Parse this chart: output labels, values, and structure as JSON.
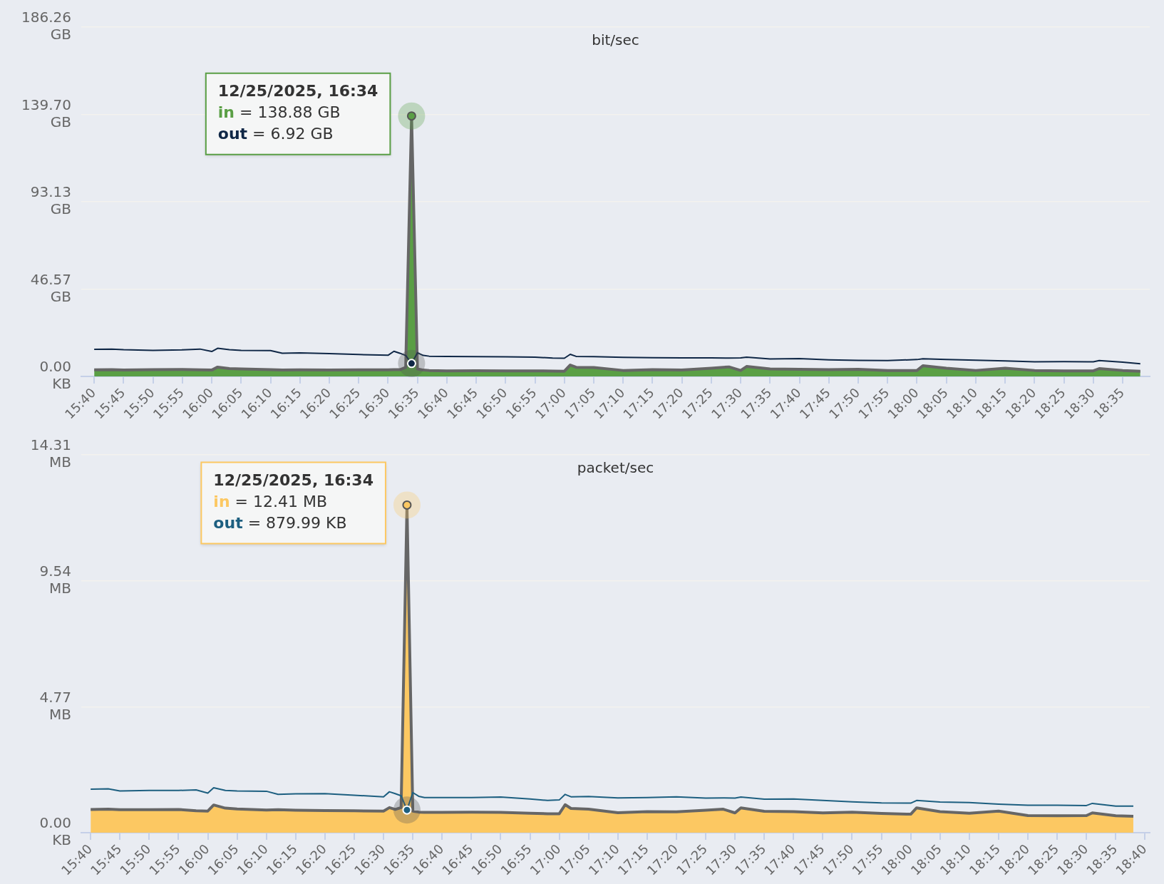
{
  "chart_data": [
    {
      "type": "area",
      "title": "bit/sec",
      "grid": "y",
      "marker": "none",
      "x": [
        15.6667,
        15.7167,
        15.75,
        15.8333,
        15.9167,
        15.9667,
        16,
        16.0167,
        16.05,
        16.0833,
        16.1667,
        16.2,
        16.25,
        16.3333,
        16.4167,
        16.5,
        16.5167,
        16.5333,
        16.55,
        16.5667,
        16.5833,
        16.6,
        16.6167,
        16.6667,
        16.75,
        16.8333,
        16.9167,
        16.9667,
        17,
        17.0167,
        17.0333,
        17.0833,
        17.1667,
        17.25,
        17.3333,
        17.4167,
        17.4667,
        17.5,
        17.5167,
        17.5833,
        17.6667,
        17.75,
        17.8333,
        17.9167,
        18,
        18.0167,
        18.0833,
        18.1667,
        18.25,
        18.3333,
        18.4167,
        18.5,
        18.5167,
        18.5833,
        18.6333
      ],
      "series": [
        {
          "name": "in",
          "color": "#5a9f45",
          "values": [
            3.5,
            3.6,
            3.4,
            3.6,
            3.7,
            3.5,
            3.4,
            5.0,
            4.2,
            4.0,
            3.6,
            3.4,
            3.5,
            3.4,
            3.5,
            3.5,
            3.6,
            3.6,
            4.8,
            138.88,
            4.0,
            3.4,
            3.2,
            3.0,
            3.1,
            3.0,
            3.0,
            2.9,
            2.8,
            6.1,
            4.9,
            4.8,
            3.2,
            3.6,
            3.4,
            4.4,
            5.1,
            3.2,
            5.3,
            4.0,
            3.8,
            3.6,
            3.8,
            3.2,
            3.2,
            5.7,
            4.4,
            3.2,
            4.4,
            3.2,
            3.0,
            3.0,
            4.2,
            3.2,
            2.8
          ]
        },
        {
          "name": "out",
          "type": "line",
          "color": "#0f2746",
          "values": [
            14.5,
            14.6,
            14.3,
            13.9,
            14.2,
            14.6,
            13.3,
            15.0,
            14.3,
            13.9,
            13.8,
            12.4,
            12.6,
            12.2,
            11.7,
            11.3,
            13.4,
            12.4,
            11.2,
            6.92,
            12.6,
            11.2,
            10.8,
            10.7,
            10.6,
            10.5,
            10.3,
            9.8,
            9.7,
            11.8,
            10.7,
            10.6,
            10.2,
            10.0,
            9.9,
            9.9,
            9.8,
            9.9,
            10.3,
            9.3,
            9.5,
            8.9,
            8.6,
            8.5,
            9.0,
            9.4,
            9.0,
            8.7,
            8.3,
            7.8,
            7.9,
            7.8,
            8.5,
            7.6,
            6.8
          ]
        }
      ],
      "annotations": [
        {
          "text": "12/25/2025, 16:34",
          "x": 16.5667,
          "y": 138.88
        },
        "= 138.88 GB",
        "= 6.92 GB"
      ],
      "xlim": [
        15.63,
        18.66
      ],
      "xticks": [
        {
          "value": 15.6667,
          "label": "15:40"
        },
        {
          "value": 15.75,
          "label": "15:45"
        },
        {
          "value": 15.8333,
          "label": "15:50"
        },
        {
          "value": 15.9167,
          "label": "15:55"
        },
        {
          "value": 16,
          "label": "16:00"
        },
        {
          "value": 16.0833,
          "label": "16:05"
        },
        {
          "value": 16.1667,
          "label": "16:10"
        },
        {
          "value": 16.25,
          "label": "16:15"
        },
        {
          "value": 16.3333,
          "label": "16:20"
        },
        {
          "value": 16.4167,
          "label": "16:25"
        },
        {
          "value": 16.5,
          "label": "16:30"
        },
        {
          "value": 16.5833,
          "label": "16:35"
        },
        {
          "value": 16.6667,
          "label": "16:40"
        },
        {
          "value": 16.75,
          "label": "16:45"
        },
        {
          "value": 16.8333,
          "label": "16:50"
        },
        {
          "value": 16.9167,
          "label": "16:55"
        },
        {
          "value": 17,
          "label": "17:00"
        },
        {
          "value": 17.0833,
          "label": "17:05"
        },
        {
          "value": 17.1667,
          "label": "17:10"
        },
        {
          "value": 17.25,
          "label": "17:15"
        },
        {
          "value": 17.3333,
          "label": "17:20"
        },
        {
          "value": 17.4167,
          "label": "17:25"
        },
        {
          "value": 17.5,
          "label": "17:30"
        },
        {
          "value": 17.5833,
          "label": "17:35"
        },
        {
          "value": 17.6667,
          "label": "17:40"
        },
        {
          "value": 17.75,
          "label": "17:45"
        },
        {
          "value": 17.8333,
          "label": "17:50"
        },
        {
          "value": 17.9167,
          "label": "17:55"
        },
        {
          "value": 18,
          "label": "18:00"
        },
        {
          "value": 18.0833,
          "label": "18:05"
        },
        {
          "value": 18.1667,
          "label": "18:10"
        },
        {
          "value": 18.25,
          "label": "18:15"
        },
        {
          "value": 18.3333,
          "label": "18:20"
        },
        {
          "value": 18.4167,
          "label": "18:25"
        },
        {
          "value": 18.5,
          "label": "18:30"
        },
        {
          "value": 18.5833,
          "label": "18:35"
        }
      ],
      "ylim": [
        0,
        186.26
      ],
      "yticks": [
        {
          "value": 0,
          "label": "0.00 KB"
        },
        {
          "value": 46.57,
          "label": "46.57 GB"
        },
        {
          "value": 93.13,
          "label": "93.13 GB"
        },
        {
          "value": 139.7,
          "label": "139.70 GB"
        },
        {
          "value": 186.26,
          "label": "186.26 GB"
        }
      ]
    },
    {
      "type": "area",
      "title": "packet/sec",
      "grid": "y",
      "marker": "none",
      "x": [
        15.6667,
        15.7167,
        15.75,
        15.8333,
        15.9167,
        15.9667,
        16,
        16.0167,
        16.05,
        16.0833,
        16.1667,
        16.2,
        16.25,
        16.3333,
        16.4167,
        16.5,
        16.5167,
        16.5333,
        16.55,
        16.5667,
        16.5833,
        16.6,
        16.6167,
        16.6667,
        16.75,
        16.8333,
        16.9167,
        16.9667,
        17,
        17.0167,
        17.0333,
        17.0833,
        17.1667,
        17.25,
        17.3333,
        17.4167,
        17.4667,
        17.5,
        17.5167,
        17.5833,
        17.6667,
        17.75,
        17.8333,
        17.9167,
        18,
        18.0167,
        18.0833,
        18.1667,
        18.25,
        18.3333,
        18.4167,
        18.5,
        18.5167,
        18.5833,
        18.6333
      ],
      "series": [
        {
          "name": "in",
          "color": "#fcc862",
          "values": [
            0.88,
            0.89,
            0.87,
            0.87,
            0.88,
            0.83,
            0.82,
            1.05,
            0.93,
            0.9,
            0.86,
            0.87,
            0.85,
            0.84,
            0.83,
            0.82,
            0.95,
            0.88,
            0.95,
            12.41,
            0.82,
            0.78,
            0.77,
            0.77,
            0.78,
            0.77,
            0.74,
            0.72,
            0.72,
            1.06,
            0.92,
            0.89,
            0.76,
            0.8,
            0.79,
            0.85,
            0.89,
            0.75,
            0.94,
            0.81,
            0.8,
            0.75,
            0.78,
            0.73,
            0.7,
            0.94,
            0.8,
            0.74,
            0.82,
            0.65,
            0.64,
            0.65,
            0.75,
            0.64,
            0.62
          ]
        },
        {
          "name": "out",
          "type": "line",
          "color": "#1d5f80",
          "values": [
            1.65,
            1.66,
            1.58,
            1.6,
            1.6,
            1.62,
            1.5,
            1.7,
            1.6,
            1.58,
            1.57,
            1.45,
            1.47,
            1.48,
            1.42,
            1.36,
            1.55,
            1.48,
            1.4,
            0.86,
            1.52,
            1.38,
            1.33,
            1.33,
            1.33,
            1.35,
            1.28,
            1.22,
            1.24,
            1.45,
            1.36,
            1.37,
            1.32,
            1.33,
            1.36,
            1.31,
            1.32,
            1.31,
            1.35,
            1.27,
            1.28,
            1.22,
            1.17,
            1.13,
            1.12,
            1.22,
            1.16,
            1.14,
            1.08,
            1.04,
            1.04,
            1.03,
            1.11,
            1.01,
            1.01
          ]
        }
      ],
      "annotations": [
        {
          "text": "12/25/2025, 16:34",
          "x": 16.5667,
          "y": 12.41
        },
        "= 12.41 MB",
        "= 879.99 KB"
      ],
      "xlim": [
        15.64,
        18.68
      ],
      "xticks": [
        {
          "value": 15.6667,
          "label": "15:40"
        },
        {
          "value": 15.75,
          "label": "15:45"
        },
        {
          "value": 15.8333,
          "label": "15:50"
        },
        {
          "value": 15.9167,
          "label": "15:55"
        },
        {
          "value": 16,
          "label": "16:00"
        },
        {
          "value": 16.0833,
          "label": "16:05"
        },
        {
          "value": 16.1667,
          "label": "16:10"
        },
        {
          "value": 16.25,
          "label": "16:15"
        },
        {
          "value": 16.3333,
          "label": "16:20"
        },
        {
          "value": 16.4167,
          "label": "16:25"
        },
        {
          "value": 16.5,
          "label": "16:30"
        },
        {
          "value": 16.5833,
          "label": "16:35"
        },
        {
          "value": 16.6667,
          "label": "16:40"
        },
        {
          "value": 16.75,
          "label": "16:45"
        },
        {
          "value": 16.8333,
          "label": "16:50"
        },
        {
          "value": 16.9167,
          "label": "16:55"
        },
        {
          "value": 17,
          "label": "17:00"
        },
        {
          "value": 17.0833,
          "label": "17:05"
        },
        {
          "value": 17.1667,
          "label": "17:10"
        },
        {
          "value": 17.25,
          "label": "17:15"
        },
        {
          "value": 17.3333,
          "label": "17:20"
        },
        {
          "value": 17.4167,
          "label": "17:25"
        },
        {
          "value": 17.5,
          "label": "17:30"
        },
        {
          "value": 17.5833,
          "label": "17:35"
        },
        {
          "value": 17.6667,
          "label": "17:40"
        },
        {
          "value": 17.75,
          "label": "17:45"
        },
        {
          "value": 17.8333,
          "label": "17:50"
        },
        {
          "value": 17.9167,
          "label": "17:55"
        },
        {
          "value": 18,
          "label": "18:00"
        },
        {
          "value": 18.0833,
          "label": "18:05"
        },
        {
          "value": 18.1667,
          "label": "18:10"
        },
        {
          "value": 18.25,
          "label": "18:15"
        },
        {
          "value": 18.3333,
          "label": "18:20"
        },
        {
          "value": 18.4167,
          "label": "18:25"
        },
        {
          "value": 18.5,
          "label": "18:30"
        },
        {
          "value": 18.5833,
          "label": "18:35"
        },
        {
          "value": 18.6667,
          "label": "18:40"
        }
      ],
      "ylim": [
        0,
        14.31
      ],
      "yticks": [
        {
          "value": 0,
          "label": "0.00 KB"
        },
        {
          "value": 4.77,
          "label": "4.77 MB"
        },
        {
          "value": 9.54,
          "label": "9.54 MB"
        },
        {
          "value": 14.31,
          "label": "14.31 MB"
        }
      ]
    }
  ]
}
